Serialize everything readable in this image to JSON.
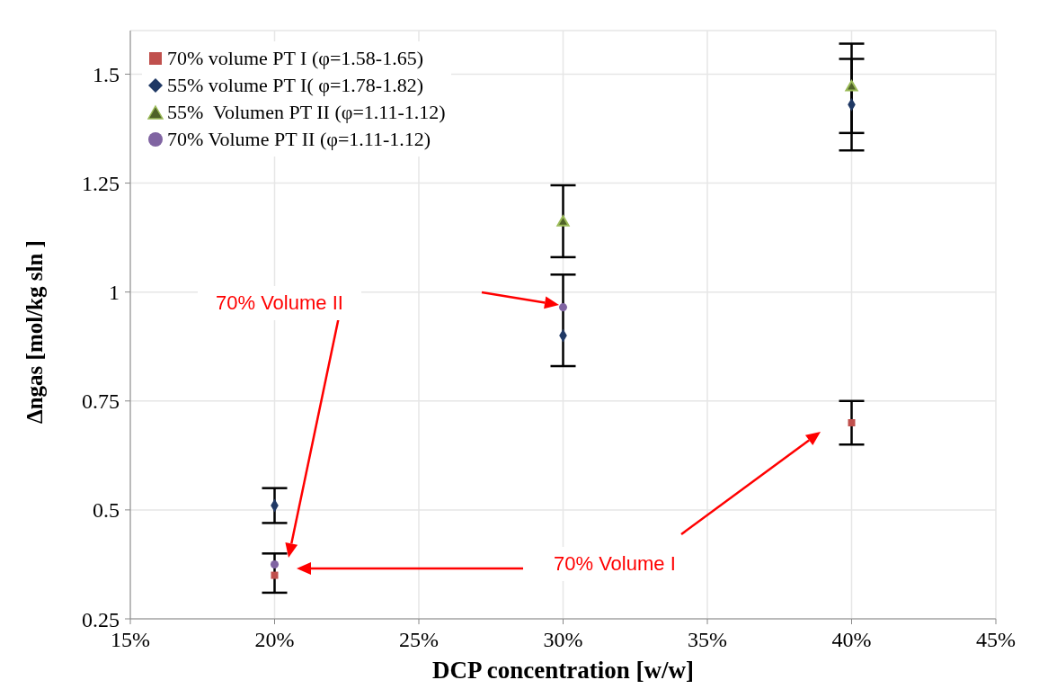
{
  "chart_data": {
    "type": "scatter",
    "xlabel": "DCP concentration [w/w]",
    "ylabel": "Δngas [mol/kg sln ]",
    "x": [
      20,
      30,
      40
    ],
    "series": [
      {
        "name": "70% volume PT I (φ=1.58-1.65)",
        "color": "#c0504d",
        "marker": "square",
        "values": [
          0.35,
          null,
          0.7
        ],
        "errors": [
          [
            0.31,
            0.4
          ],
          null,
          [
            0.65,
            0.75
          ]
        ]
      },
      {
        "name": "55% volume PT I( φ=1.78-1.82)",
        "color": "#1f3864",
        "marker": "diamond",
        "values": [
          0.51,
          0.9,
          1.43
        ],
        "errors": [
          [
            0.47,
            0.55
          ],
          [
            0.83,
            1.04
          ],
          [
            1.325,
            1.535
          ]
        ]
      },
      {
        "name": "55%  Volumen PT II (φ=1.11-1.12)",
        "color": "#4f6228",
        "marker": "triangle",
        "values": [
          null,
          1.16,
          1.47
        ],
        "errors": [
          null,
          [
            1.08,
            1.245
          ],
          [
            1.365,
            1.57
          ]
        ]
      },
      {
        "name": "70% Volume PT II (φ=1.11-1.12)",
        "color": "#8064a2",
        "marker": "circle",
        "values": [
          0.375,
          0.965,
          null
        ]
      }
    ],
    "xlim": [
      15,
      45
    ],
    "xticks": [
      {
        "value": 15,
        "label": "15%"
      },
      {
        "value": 20,
        "label": "20%"
      },
      {
        "value": 25,
        "label": "25%"
      },
      {
        "value": 30,
        "label": "30%"
      },
      {
        "value": 35,
        "label": "35%"
      },
      {
        "value": 40,
        "label": "40%"
      },
      {
        "value": 45,
        "label": "45%"
      }
    ],
    "ylim": [
      0.25,
      1.6
    ],
    "yticks": [
      0.25,
      0.5,
      0.75,
      1,
      1.25,
      1.5
    ],
    "grid": true,
    "legend": "top left",
    "annotations": [
      "70% Volume II",
      "70% Volume I"
    ]
  }
}
